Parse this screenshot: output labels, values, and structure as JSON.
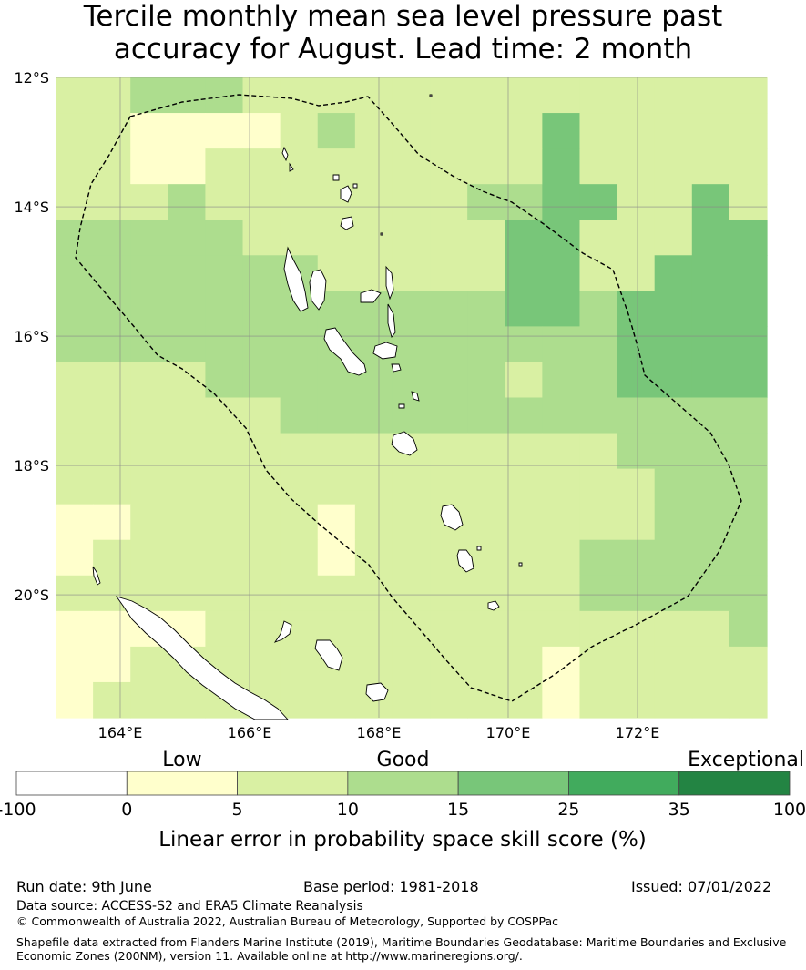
{
  "title": {
    "line1": "Tercile monthly mean sea level pressure past",
    "line2": "accuracy for August. Lead time: 2 month"
  },
  "map": {
    "lon_range": [
      163.0,
      174.0
    ],
    "lat_range": [
      -21.9,
      -12.0
    ],
    "lon_ticks": [
      {
        "value": 164,
        "label": "164°E"
      },
      {
        "value": 166,
        "label": "166°E"
      },
      {
        "value": 168,
        "label": "168°E"
      },
      {
        "value": 170,
        "label": "170°E"
      },
      {
        "value": 172,
        "label": "172°E"
      }
    ],
    "lat_ticks": [
      {
        "value": -12,
        "label": "12°S"
      },
      {
        "value": -14,
        "label": "14°S"
      },
      {
        "value": -16,
        "label": "16°S"
      },
      {
        "value": -18,
        "label": "18°S"
      },
      {
        "value": -20,
        "label": "20°S"
      }
    ],
    "grid_color": "#888888",
    "gridlines": true
  },
  "colorbar": {
    "category_labels": [
      "Low",
      "Good",
      "Exceptional"
    ],
    "tick_labels": [
      "-100",
      "0",
      "5",
      "10",
      "15",
      "25",
      "35",
      "100"
    ],
    "colors": [
      "#ffffff",
      "#ffffcc",
      "#d9f0a3",
      "#addd8e",
      "#78c679",
      "#41ab5d",
      "#238443"
    ],
    "label": "Linear error in probability space skill score (%)"
  },
  "footer": {
    "run_date": "Run date: 9th June",
    "base_period": "Base period: 1981-2018",
    "issued": "Issued: 07/01/2022",
    "data_source": "Data source: ACCESS-S2 and ERA5 Climate Reanalysis",
    "copyright": "© Commonwealth of Australia 2022, Australian Bureau of Meteorology, Supported by COSPPac",
    "shapefile_line1": "Shapefile data extracted from Flanders Marine Institute (2019), Maritime Boundaries Geodatabase: Maritime Boundaries and Exclusive",
    "shapefile_line2": "Economic Zones (200NM), version 11. Available online at http://www.marineregions.org/."
  }
}
